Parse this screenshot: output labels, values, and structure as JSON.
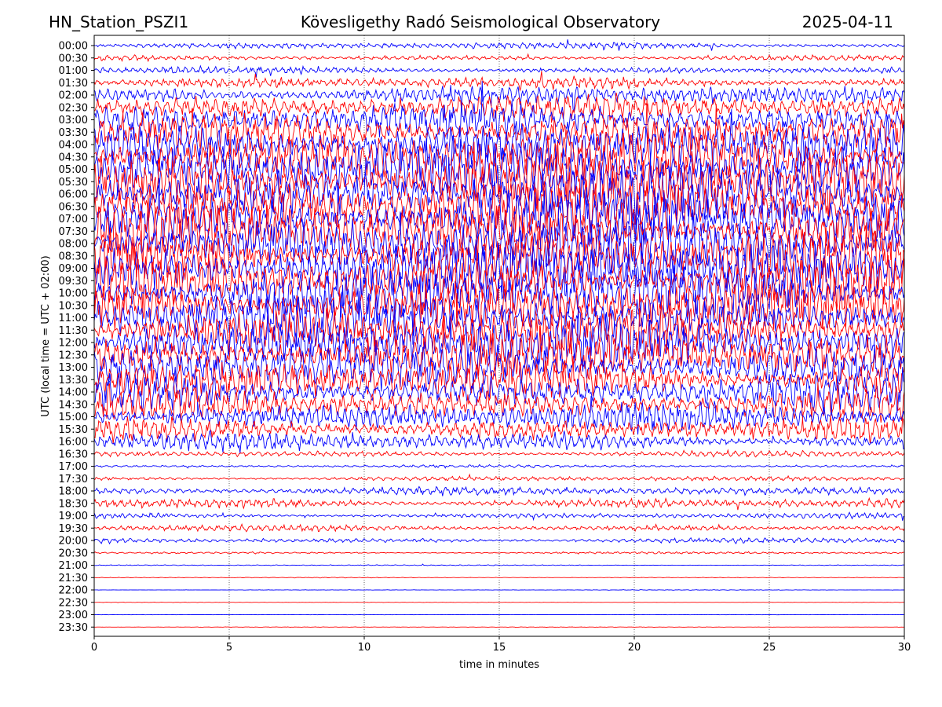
{
  "header": {
    "station": "HN_Station_PSZI1",
    "observatory": "Kövesligethy Radó Seismological Observatory",
    "date": "2025-04-11"
  },
  "chart_data": {
    "type": "line",
    "title": "Kövesligethy Radó Seismological Observatory",
    "xlabel": "time in minutes",
    "ylabel": "UTC (local time = UTC + 02:00)",
    "xlim": [
      0,
      30
    ],
    "x_ticks": [
      "0",
      "5",
      "10",
      "15",
      "20",
      "25",
      "30"
    ],
    "grid": "vertical dotted lines at each 5-minute tick",
    "row_labels": [
      "00:00",
      "00:30",
      "01:00",
      "01:30",
      "02:00",
      "02:30",
      "03:00",
      "03:30",
      "04:00",
      "04:30",
      "05:00",
      "05:30",
      "06:00",
      "06:30",
      "07:00",
      "07:30",
      "08:00",
      "08:30",
      "09:00",
      "09:30",
      "10:00",
      "10:30",
      "11:00",
      "11:30",
      "12:00",
      "12:30",
      "13:00",
      "13:30",
      "14:00",
      "14:30",
      "15:00",
      "15:30",
      "16:00",
      "16:30",
      "17:00",
      "17:30",
      "18:00",
      "18:30",
      "19:00",
      "19:30",
      "20:00",
      "20:30",
      "21:00",
      "21:30",
      "22:00",
      "22:30",
      "23:00",
      "23:30"
    ],
    "trace_colors": [
      "#0000ff",
      "#ff0000"
    ],
    "relative_amplitude": [
      0.35,
      0.3,
      0.4,
      0.6,
      1.0,
      1.4,
      1.8,
      2.2,
      2.6,
      2.8,
      3.0,
      3.0,
      3.0,
      3.0,
      3.0,
      3.0,
      3.0,
      3.0,
      3.0,
      2.9,
      2.8,
      2.8,
      2.7,
      2.6,
      2.6,
      2.5,
      2.4,
      2.2,
      2.0,
      1.8,
      1.6,
      1.3,
      1.0,
      0.35,
      0.15,
      0.25,
      0.45,
      0.55,
      0.3,
      0.35,
      0.3,
      0.12,
      0.05,
      0.04,
      0.03,
      0.02,
      0.02,
      0.02
    ]
  }
}
